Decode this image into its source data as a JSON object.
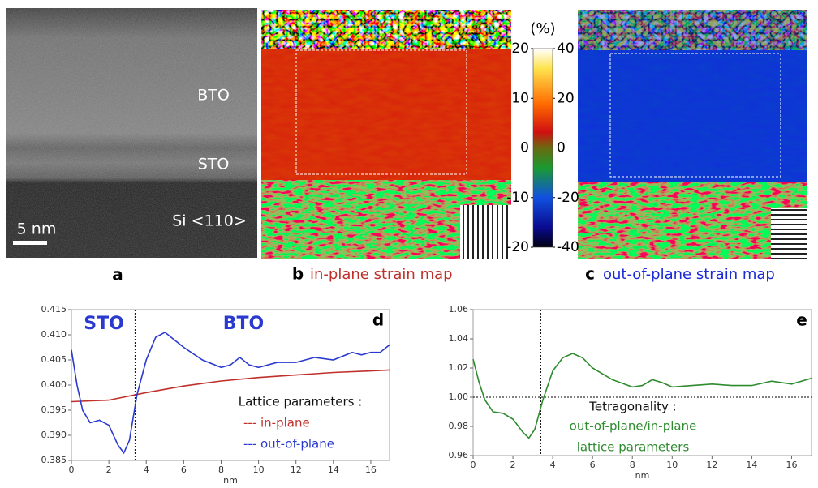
{
  "panels": {
    "a": {
      "letter": "a",
      "labels": [
        "BTO",
        "STO",
        "Si <110>"
      ],
      "scale_bar": "5 nm"
    },
    "b": {
      "letter": "b",
      "caption": "in-plane strain map"
    },
    "c": {
      "letter": "c",
      "caption": "out-of-plane strain map"
    }
  },
  "colorbar": {
    "unit": "(%)",
    "left_lim": [
      -20,
      20
    ],
    "left_ticks": [
      20,
      10,
      0,
      -10,
      -20
    ],
    "right_lim": [
      -40,
      40
    ],
    "right_ticks": [
      40,
      20,
      0,
      -20,
      -40
    ]
  },
  "chart_data": [
    {
      "type": "line",
      "letter": "d",
      "x_label": "nm",
      "xlim": [
        0,
        17
      ],
      "xticks": [
        0,
        2,
        4,
        6,
        8,
        10,
        12,
        14,
        16
      ],
      "ylim": [
        0.385,
        0.415
      ],
      "yticks": [
        0.385,
        {
          "value": 0.39,
          "label": "0.390"
        },
        0.395,
        {
          "value": 0.4,
          "label": "0.400"
        },
        0.405,
        {
          "value": 0.41,
          "label": "0.410"
        },
        0.415
      ],
      "vline": 3.4,
      "annotations": [
        "STO",
        "BTO"
      ],
      "legend_title": "Lattice parameters :",
      "series": [
        {
          "name": "--- in-plane",
          "color": "#c0302a",
          "x": [
            0,
            2,
            4,
            6,
            8,
            10,
            12,
            14,
            16,
            17
          ],
          "values": [
            0.3967,
            0.397,
            0.3985,
            0.3998,
            0.4008,
            0.4015,
            0.402,
            0.4025,
            0.4028,
            0.403
          ]
        },
        {
          "name": "--- out-of-plane",
          "color": "#2a3ad0",
          "x": [
            0,
            0.3,
            0.6,
            1,
            1.5,
            2,
            2.5,
            2.8,
            3.1,
            3.5,
            4,
            4.5,
            5,
            5.5,
            6,
            7,
            8,
            8.5,
            9,
            9.5,
            10,
            11,
            12,
            12.5,
            13,
            14,
            15,
            15.5,
            16,
            16.5,
            17
          ],
          "values": [
            0.407,
            0.4,
            0.395,
            0.3925,
            0.393,
            0.392,
            0.388,
            0.3865,
            0.389,
            0.398,
            0.405,
            0.4095,
            0.4105,
            0.409,
            0.4075,
            0.405,
            0.4035,
            0.404,
            0.4055,
            0.404,
            0.4035,
            0.4045,
            0.4045,
            0.405,
            0.4055,
            0.405,
            0.4065,
            0.406,
            0.4065,
            0.4065,
            0.408
          ]
        }
      ]
    },
    {
      "type": "line",
      "letter": "e",
      "x_label": "nm",
      "xlim": [
        0,
        17
      ],
      "xticks": [
        0,
        2,
        4,
        6,
        8,
        10,
        12,
        14,
        16
      ],
      "ylim": [
        0.96,
        1.06
      ],
      "yticks": [
        0.96,
        0.98,
        {
          "value": 1,
          "label": "1.00"
        },
        1.02,
        1.04,
        1.06
      ],
      "vline": 3.4,
      "hline": 1,
      "annotations": [
        "Tetragonality :",
        "out-of-plane/in-plane",
        "lattice parameters"
      ],
      "series": [
        {
          "color": "#2e8b2e",
          "x": [
            0,
            0.3,
            0.6,
            1,
            1.5,
            2,
            2.5,
            2.8,
            3.1,
            3.5,
            4,
            4.5,
            5,
            5.5,
            6,
            7,
            8,
            8.5,
            9,
            9.5,
            10,
            11,
            12,
            13,
            14,
            15,
            16,
            17
          ],
          "values": [
            1.026,
            1.01,
            0.998,
            0.99,
            0.989,
            0.985,
            0.976,
            0.972,
            0.978,
            0.998,
            1.018,
            1.027,
            1.03,
            1.027,
            1.02,
            1.012,
            1.007,
            1.008,
            1.012,
            1.01,
            1.007,
            1.008,
            1.009,
            1.008,
            1.008,
            1.011,
            1.009,
            1.013
          ]
        }
      ]
    }
  ]
}
